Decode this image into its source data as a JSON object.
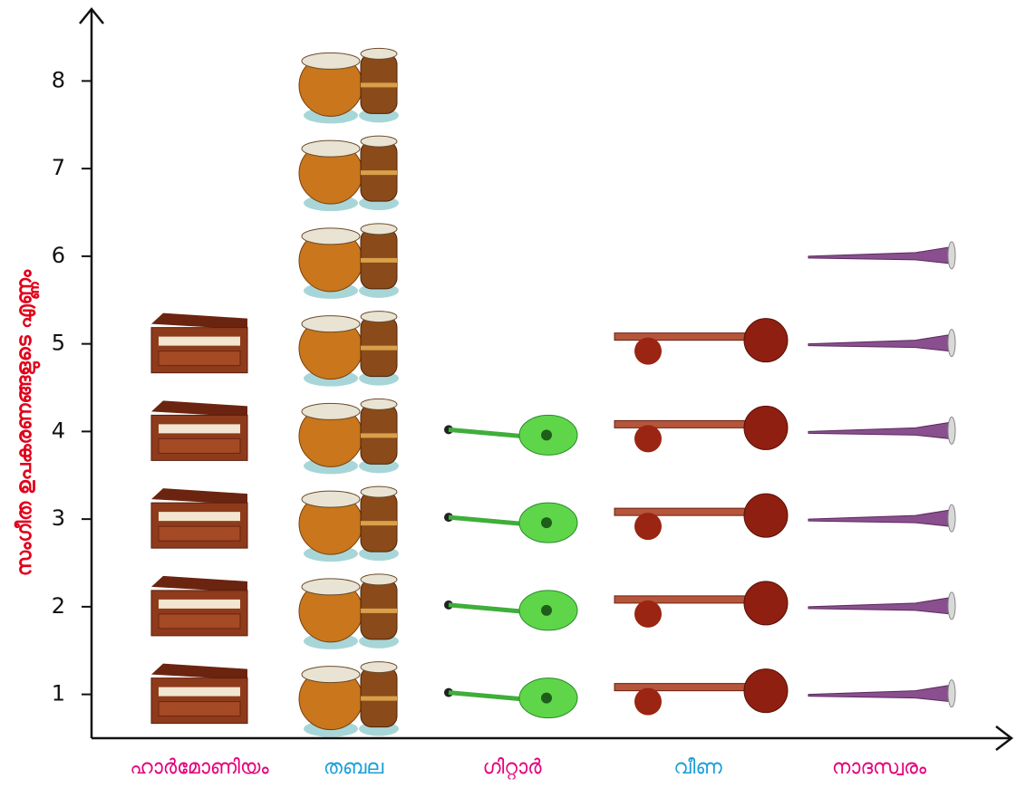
{
  "chart_data": {
    "type": "pictograph",
    "y_label": "സംഗീത ഉപകരണങ്ങളുടെ എണ്ണം",
    "y_label_color": "#e2001a",
    "categories": [
      "ഹാർമോണിയം",
      "തബല",
      "ഗിറ്റാർ",
      "വീണ",
      "നാദസ്വരം"
    ],
    "category_colors": [
      "#e4007c",
      "#1a9fd9",
      "#e4007c",
      "#1a9fd9",
      "#e4007c"
    ],
    "values": [
      5,
      8,
      4,
      5,
      6
    ],
    "ylim": [
      0.5,
      8.8
    ],
    "yticks": [
      1,
      2,
      3,
      4,
      5,
      6,
      7,
      8
    ]
  }
}
